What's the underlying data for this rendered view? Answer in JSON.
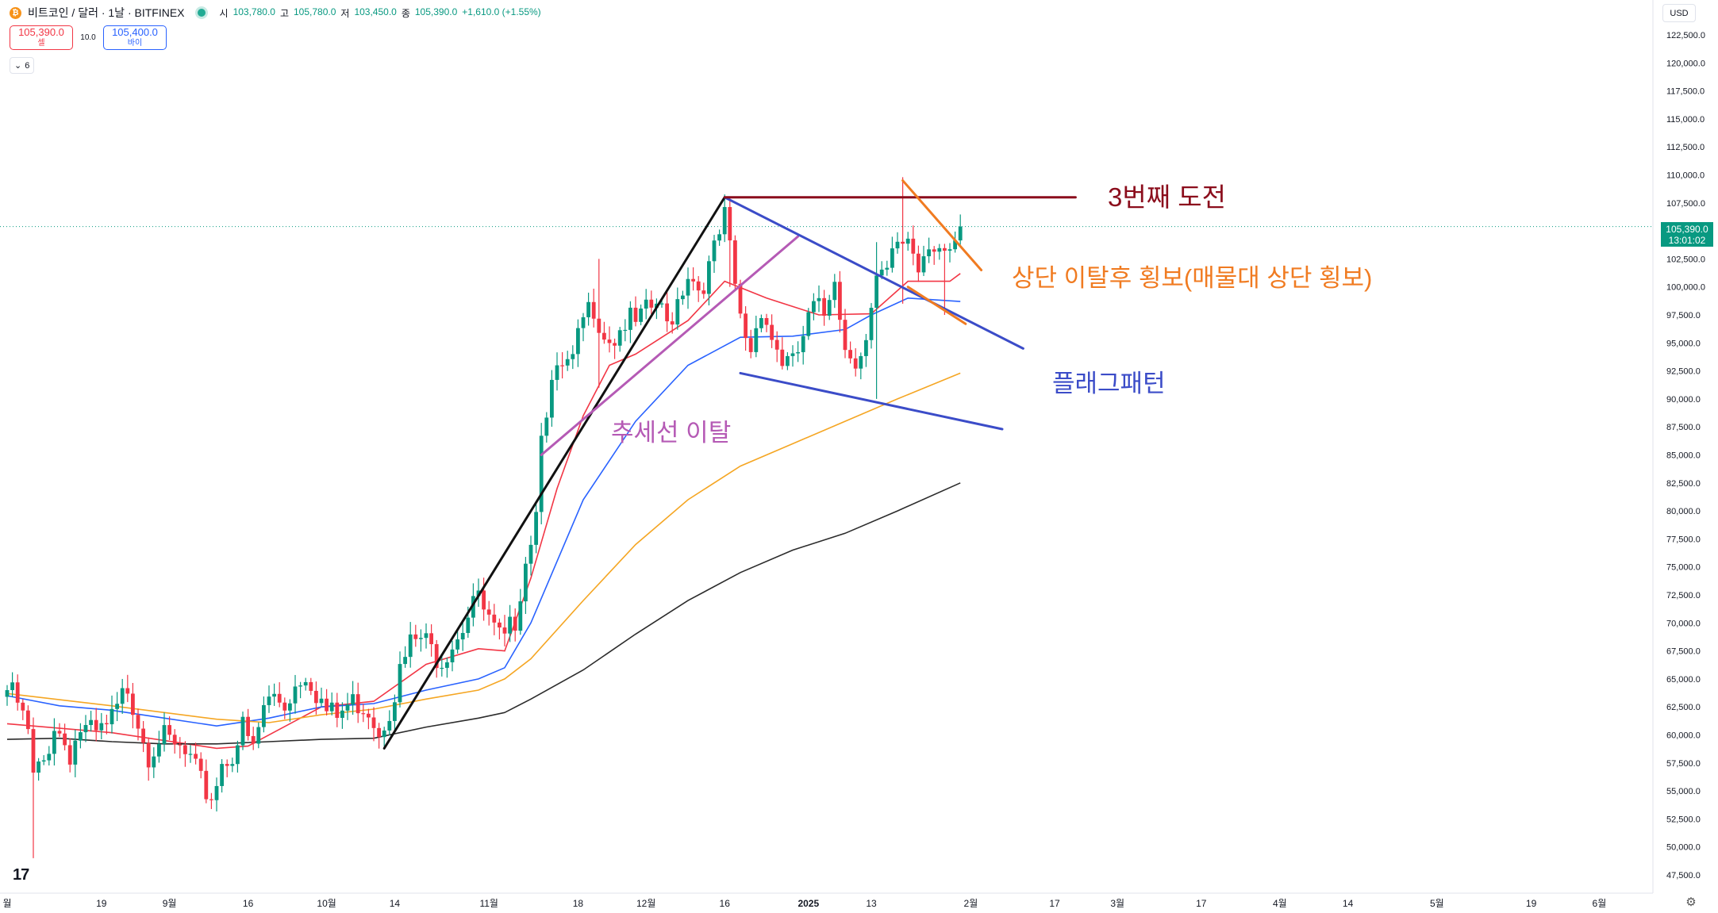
{
  "header": {
    "coin_icon": "bitcoin-icon",
    "symbol": "비트코인 / 달러 · 1날 · BITFINEX",
    "open_label": "시",
    "open": "103,780.0",
    "high_label": "고",
    "high": "105,780.0",
    "low_label": "저",
    "low": "103,450.0",
    "close_label": "종",
    "close": "105,390.0",
    "change": "+1,610.0 (+1.55%)"
  },
  "trade": {
    "sell_price": "105,390.0",
    "sell_label": "셀",
    "spread": "10.0",
    "buy_price": "105,400.0",
    "buy_label": "바이"
  },
  "indicators": {
    "count": "6"
  },
  "price_scale": {
    "currency": "USD",
    "last_price": "105,390.0",
    "countdown": "13:01:02"
  },
  "logo": "17",
  "colors": {
    "up": "#089981",
    "down": "#f23645",
    "ma_fast": "#f23645",
    "ma_mid": "#2962ff",
    "ma_slow": "#f5a623",
    "ma_long": "#2b2b2b",
    "flag": "#3b4cc8",
    "trend_break": "#b55ab5",
    "challenge": "#8b0d1c",
    "breakout": "#f07b21"
  },
  "annotations": {
    "challenge": "3번째 도전",
    "range": "상단 이탈후 횡보(매물대 상단 횡보)",
    "flag": "플래그패턴",
    "break": "추세선 이탈"
  },
  "chart_data": {
    "type": "candlestick",
    "interval": "1D",
    "ylim": [
      47500,
      122500
    ],
    "y_ticks": [
      47500,
      50000,
      52500,
      55000,
      57500,
      60000,
      62500,
      65000,
      67500,
      70000,
      72500,
      75000,
      77500,
      80000,
      82500,
      85000,
      87500,
      90000,
      92500,
      95000,
      97500,
      100000,
      102500,
      105000,
      107500,
      110000,
      112500,
      115000,
      117500,
      120000,
      122500
    ],
    "y_tick_labels": [
      "47,500.0",
      "50,000.0",
      "52,500.0",
      "55,000.0",
      "57,500.0",
      "60,000.0",
      "62,500.0",
      "65,000.0",
      "67,500.0",
      "70,000.0",
      "72,500.0",
      "75,000.0",
      "77,500.0",
      "80,000.0",
      "82,500.0",
      "85,000.0",
      "87,500.0",
      "90,000.0",
      "92,500.0",
      "95,000.0",
      "97,500.0",
      "100,000.0",
      "102,500.0",
      "105,000.0",
      "107,500.0",
      "110,000.0",
      "112,500.0",
      "115,000.0",
      "117,500.0",
      "120,000.0",
      "122,500.0"
    ],
    "x_ticks": [
      {
        "label": "월",
        "d": 0
      },
      {
        "label": "19",
        "d": 18
      },
      {
        "label": "9월",
        "d": 31
      },
      {
        "label": "16",
        "d": 46
      },
      {
        "label": "10월",
        "d": 61
      },
      {
        "label": "14",
        "d": 74
      },
      {
        "label": "11월",
        "d": 92
      },
      {
        "label": "18",
        "d": 109
      },
      {
        "label": "12월",
        "d": 122
      },
      {
        "label": "16",
        "d": 137
      },
      {
        "label": "2025",
        "d": 153,
        "bold": true
      },
      {
        "label": "13",
        "d": 165
      },
      {
        "label": "2월",
        "d": 184
      },
      {
        "label": "17",
        "d": 200
      },
      {
        "label": "3월",
        "d": 212
      },
      {
        "label": "17",
        "d": 228
      },
      {
        "label": "4월",
        "d": 243
      },
      {
        "label": "14",
        "d": 256
      },
      {
        "label": "5월",
        "d": 273
      },
      {
        "label": "19",
        "d": 291
      },
      {
        "label": "6월",
        "d": 304
      }
    ],
    "close_keypoints": [
      [
        0,
        64000
      ],
      [
        2,
        62800
      ],
      [
        4,
        60000
      ],
      [
        5,
        56000
      ],
      [
        7,
        57500
      ],
      [
        9,
        61000
      ],
      [
        12,
        58500
      ],
      [
        14,
        60500
      ],
      [
        17,
        59800
      ],
      [
        19,
        60500
      ],
      [
        21,
        62000
      ],
      [
        23,
        64500
      ],
      [
        25,
        61500
      ],
      [
        27,
        58500
      ],
      [
        29,
        60000
      ],
      [
        31,
        59000
      ],
      [
        33,
        58500
      ],
      [
        35,
        57500
      ],
      [
        37,
        55500
      ],
      [
        39,
        54500
      ],
      [
        41,
        57500
      ],
      [
        43,
        58500
      ],
      [
        45,
        60500
      ],
      [
        47,
        58500
      ],
      [
        49,
        62500
      ],
      [
        51,
        63500
      ],
      [
        53,
        62800
      ],
      [
        55,
        64500
      ],
      [
        57,
        65800
      ],
      [
        59,
        64000
      ],
      [
        61,
        62000
      ],
      [
        63,
        61500
      ],
      [
        65,
        62600
      ],
      [
        67,
        63000
      ],
      [
        69,
        62500
      ],
      [
        71,
        60500
      ],
      [
        73,
        62600
      ],
      [
        75,
        65500
      ],
      [
        77,
        68000
      ],
      [
        79,
        68600
      ],
      [
        81,
        67500
      ],
      [
        83,
        67000
      ],
      [
        85,
        68500
      ],
      [
        87,
        70000
      ],
      [
        89,
        72500
      ],
      [
        91,
        71000
      ],
      [
        93,
        69000
      ],
      [
        95,
        68000
      ],
      [
        97,
        70500
      ],
      [
        99,
        76000
      ],
      [
        101,
        80000
      ],
      [
        102,
        88000
      ],
      [
        104,
        91000
      ],
      [
        106,
        92500
      ],
      [
        108,
        93000
      ],
      [
        110,
        97000
      ],
      [
        112,
        98500
      ],
      [
        114,
        96000
      ],
      [
        116,
        95500
      ],
      [
        118,
        97000
      ],
      [
        120,
        96500
      ],
      [
        122,
        97500
      ],
      [
        124,
        98500
      ],
      [
        126,
        96500
      ],
      [
        128,
        99000
      ],
      [
        130,
        101500
      ],
      [
        132,
        100000
      ],
      [
        134,
        101500
      ],
      [
        136,
        104500
      ],
      [
        137,
        106000
      ],
      [
        138,
        103000
      ],
      [
        139,
        100000
      ],
      [
        140,
        97000
      ],
      [
        142,
        94500
      ],
      [
        144,
        98500
      ],
      [
        146,
        95500
      ],
      [
        148,
        93500
      ],
      [
        150,
        92800
      ],
      [
        152,
        95500
      ],
      [
        154,
        98000
      ],
      [
        156,
        97500
      ],
      [
        158,
        101500
      ],
      [
        160,
        94500
      ],
      [
        162,
        94000
      ],
      [
        164,
        95000
      ],
      [
        166,
        100000
      ],
      [
        168,
        101000
      ],
      [
        170,
        104000
      ],
      [
        172,
        104500
      ],
      [
        174,
        102000
      ],
      [
        176,
        104500
      ],
      [
        178,
        103500
      ],
      [
        180,
        102000
      ],
      [
        181,
        103500
      ],
      [
        182,
        105390
      ]
    ],
    "wicks": [
      {
        "d": 5,
        "high": 57500,
        "low": 49000
      },
      {
        "d": 113,
        "high": 102500,
        "low": 91000
      },
      {
        "d": 138,
        "high": 108000,
        "low": 100000
      },
      {
        "d": 166,
        "high": 104000,
        "low": 90000
      },
      {
        "d": 171,
        "high": 109800,
        "low": 98500
      },
      {
        "d": 179,
        "high": 103500,
        "low": 97500
      }
    ],
    "moving_averages": [
      {
        "color": "#f23645",
        "points": [
          [
            0,
            61000
          ],
          [
            20,
            60200
          ],
          [
            40,
            58800
          ],
          [
            46,
            59000
          ],
          [
            60,
            62500
          ],
          [
            70,
            63000
          ],
          [
            80,
            66300
          ],
          [
            90,
            67700
          ],
          [
            95,
            67500
          ],
          [
            100,
            74000
          ],
          [
            105,
            82000
          ],
          [
            110,
            88500
          ],
          [
            115,
            93000
          ],
          [
            120,
            94000
          ],
          [
            130,
            97000
          ],
          [
            137,
            100500
          ],
          [
            145,
            99000
          ],
          [
            155,
            97500
          ],
          [
            165,
            97600
          ],
          [
            172,
            100500
          ],
          [
            180,
            100500
          ],
          [
            182,
            101200
          ]
        ]
      },
      {
        "color": "#2962ff",
        "points": [
          [
            0,
            63500
          ],
          [
            10,
            62600
          ],
          [
            20,
            62200
          ],
          [
            30,
            61500
          ],
          [
            40,
            60800
          ],
          [
            50,
            61500
          ],
          [
            60,
            62500
          ],
          [
            70,
            62800
          ],
          [
            80,
            64000
          ],
          [
            90,
            65000
          ],
          [
            95,
            66000
          ],
          [
            100,
            70000
          ],
          [
            110,
            81000
          ],
          [
            120,
            88000
          ],
          [
            130,
            93000
          ],
          [
            140,
            95500
          ],
          [
            150,
            95600
          ],
          [
            160,
            96200
          ],
          [
            165,
            97500
          ],
          [
            172,
            99000
          ],
          [
            182,
            98700
          ]
        ]
      },
      {
        "color": "#f5a623",
        "points": [
          [
            0,
            63700
          ],
          [
            20,
            62600
          ],
          [
            40,
            61400
          ],
          [
            50,
            61100
          ],
          [
            60,
            61800
          ],
          [
            70,
            62300
          ],
          [
            80,
            63200
          ],
          [
            90,
            64000
          ],
          [
            95,
            65000
          ],
          [
            100,
            66800
          ],
          [
            110,
            72000
          ],
          [
            120,
            77000
          ],
          [
            130,
            81000
          ],
          [
            140,
            84000
          ],
          [
            150,
            86000
          ],
          [
            160,
            88000
          ],
          [
            170,
            90000
          ],
          [
            182,
            92300
          ]
        ]
      },
      {
        "color": "#2b2b2b",
        "points": [
          [
            0,
            59600
          ],
          [
            10,
            59700
          ],
          [
            20,
            59400
          ],
          [
            30,
            59200
          ],
          [
            40,
            59200
          ],
          [
            50,
            59400
          ],
          [
            60,
            59600
          ],
          [
            70,
            59700
          ],
          [
            80,
            60700
          ],
          [
            90,
            61500
          ],
          [
            95,
            62000
          ],
          [
            100,
            63200
          ],
          [
            110,
            65800
          ],
          [
            120,
            69000
          ],
          [
            130,
            72000
          ],
          [
            140,
            74500
          ],
          [
            150,
            76500
          ],
          [
            160,
            78000
          ],
          [
            170,
            80000
          ],
          [
            182,
            82500
          ]
        ]
      }
    ],
    "drawings": [
      {
        "name": "rally-trendline",
        "color": "#111111",
        "width": 3,
        "from": [
          72,
          58800
        ],
        "to": [
          137,
          108000
        ]
      },
      {
        "name": "rising-trendline",
        "color": "#b55ab5",
        "width": 3,
        "from": [
          102,
          85000
        ],
        "to": [
          151,
          104500
        ]
      },
      {
        "name": "flag-upper-line",
        "color": "#3b4cc8",
        "width": 3,
        "from": [
          137,
          108000
        ],
        "to": [
          194,
          94500
        ]
      },
      {
        "name": "flag-lower-line",
        "color": "#3b4cc8",
        "width": 3,
        "from": [
          140,
          92300
        ],
        "to": [
          190,
          87300
        ]
      },
      {
        "name": "third-challenge-line",
        "color": "#8b0d1c",
        "width": 3,
        "from": [
          137,
          108000
        ],
        "to": [
          204,
          108000
        ]
      },
      {
        "name": "breakout-upper-line",
        "color": "#f07b21",
        "width": 3,
        "from": [
          171,
          109500
        ],
        "to": [
          186,
          101500
        ]
      },
      {
        "name": "breakout-lower-line",
        "color": "#f07b21",
        "width": 3,
        "from": [
          172,
          100000
        ],
        "to": [
          183,
          96700
        ]
      }
    ],
    "last_price_line": 105390
  }
}
